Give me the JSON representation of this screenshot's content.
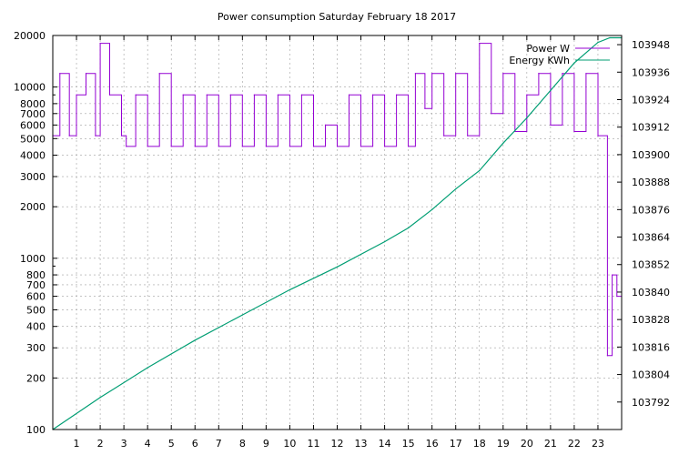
{
  "chart_data": {
    "type": "line",
    "title": "Power consumption Saturday February 18 2017",
    "xlabel": "",
    "ylabel": "",
    "y2label": "",
    "xlim": [
      0,
      24
    ],
    "ylim": [
      100,
      20000
    ],
    "y_scale": "log",
    "y2lim": [
      103780,
      103952
    ],
    "x_ticks": [
      "1",
      "2",
      "3",
      "4",
      "5",
      "6",
      "7",
      "8",
      "9",
      "10",
      "11",
      "12",
      "13",
      "14",
      "15",
      "16",
      "17",
      "18",
      "19",
      "20",
      "21",
      "22",
      "23"
    ],
    "y_ticks": [
      {
        "value": 100,
        "label": "100"
      },
      {
        "value": 200,
        "label": "200"
      },
      {
        "value": 300,
        "label": "300"
      },
      {
        "value": 400,
        "label": "400"
      },
      {
        "value": 500,
        "label": "500"
      },
      {
        "value": 600,
        "label": "600"
      },
      {
        "value": 700,
        "label": "700"
      },
      {
        "value": 800,
        "label": "800"
      },
      {
        "value": 1000,
        "label": "1000"
      },
      {
        "value": 2000,
        "label": "2000"
      },
      {
        "value": 3000,
        "label": "3000"
      },
      {
        "value": 4000,
        "label": "4000"
      },
      {
        "value": 5000,
        "label": "5000"
      },
      {
        "value": 6000,
        "label": "6000"
      },
      {
        "value": 7000,
        "label": "7000"
      },
      {
        "value": 8000,
        "label": "8000"
      },
      {
        "value": 10000,
        "label": "10000"
      },
      {
        "value": 20000,
        "label": "20000"
      }
    ],
    "y2_ticks": [
      "103792",
      "103804",
      "103816",
      "103828",
      "103840",
      "103852",
      "103864",
      "103876",
      "103888",
      "103900",
      "103912",
      "103924",
      "103936",
      "103948"
    ],
    "grid": true,
    "legend": "top-right",
    "series": [
      {
        "name": "Power W",
        "axis": "left",
        "color": "#9400d3",
        "x": [
          0.0,
          0.3,
          0.7,
          1.0,
          1.4,
          1.8,
          2.0,
          2.4,
          2.9,
          3.1,
          3.5,
          4.0,
          4.5,
          5.0,
          5.5,
          6.0,
          6.5,
          7.0,
          7.5,
          8.0,
          8.5,
          9.0,
          9.5,
          10.0,
          10.5,
          11.0,
          11.5,
          12.0,
          12.5,
          13.0,
          13.5,
          14.0,
          14.5,
          15.0,
          15.3,
          15.7,
          16.0,
          16.5,
          17.0,
          17.5,
          18.0,
          18.5,
          19.0,
          19.5,
          20.0,
          20.5,
          21.0,
          21.5,
          22.0,
          22.5,
          23.0,
          23.4,
          23.6,
          23.8,
          24.0
        ],
        "y": [
          5200,
          12000,
          5200,
          9000,
          12000,
          5200,
          18000,
          9000,
          5200,
          4500,
          9000,
          4500,
          12000,
          4500,
          9000,
          4500,
          9000,
          4500,
          9000,
          4500,
          9000,
          4500,
          9000,
          4500,
          9000,
          4500,
          6000,
          4500,
          9000,
          4500,
          9000,
          4500,
          9000,
          4500,
          12000,
          7500,
          12000,
          5200,
          12000,
          5200,
          18000,
          7000,
          12000,
          5500,
          9000,
          12000,
          6000,
          12000,
          5500,
          12000,
          5200,
          270,
          800,
          600,
          5200
        ]
      },
      {
        "name": "Energy KWh",
        "axis": "right",
        "color": "#009e73",
        "x": [
          0,
          2,
          4,
          6,
          8,
          10,
          12,
          14,
          15,
          16,
          17,
          18,
          19,
          20,
          21,
          22,
          23,
          23.5,
          24
        ],
        "y": [
          103780,
          103794,
          103807,
          103819,
          103830,
          103841,
          103851,
          103862,
          103868,
          103876,
          103885,
          103893,
          103905,
          103916,
          103928,
          103940,
          103949,
          103951,
          103951
        ]
      }
    ]
  }
}
